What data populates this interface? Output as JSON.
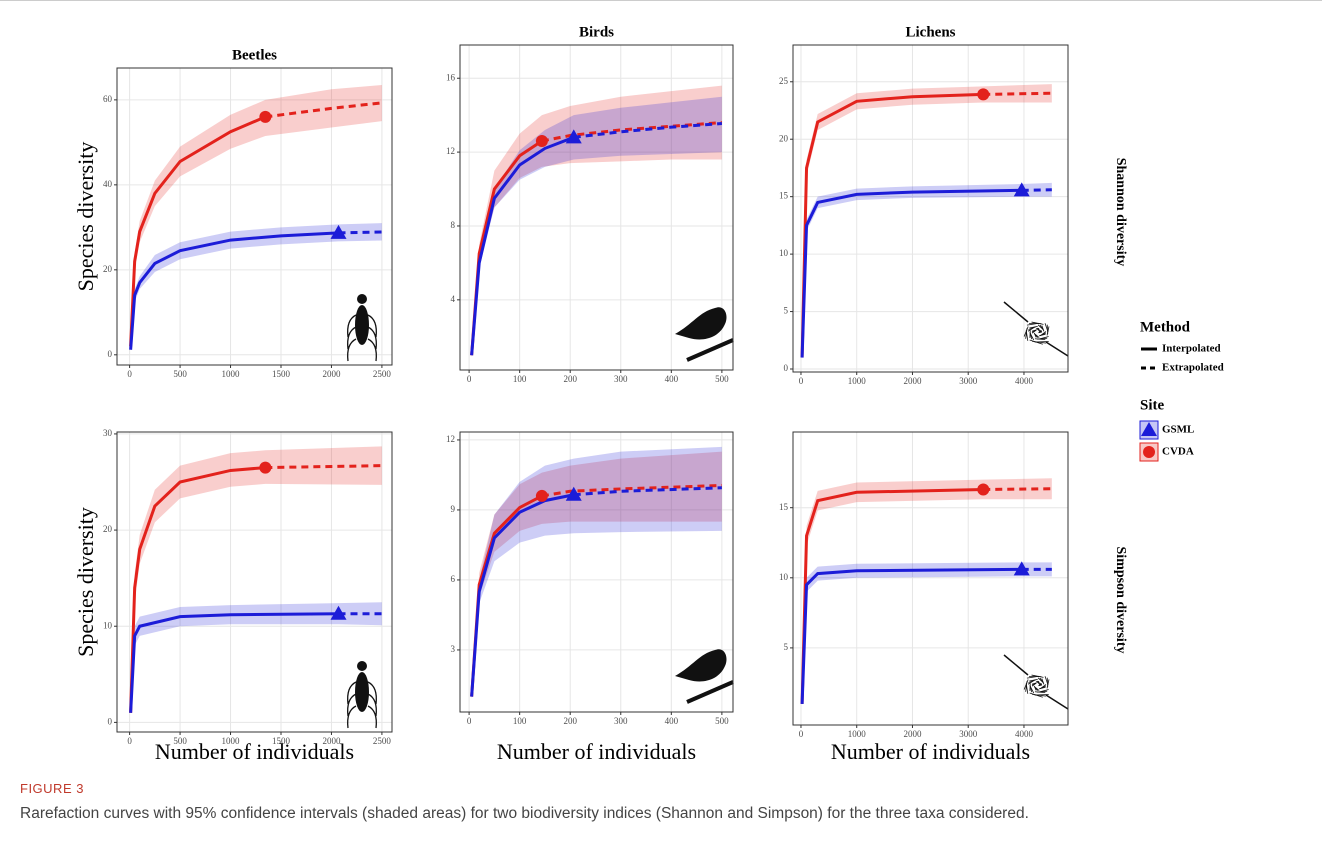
{
  "figure": {
    "label": "FIGURE 3",
    "caption": "Rarefaction curves with 95% confidence intervals (shaded areas) for two biodiversity indices (Shannon and Simpson) for the three taxa considered."
  },
  "legend": {
    "method_title": "Method",
    "methods": [
      "Interpolated",
      "Extrapolated"
    ],
    "site_title": "Site"
  },
  "chart_data": [
    {
      "type": "line",
      "title": "Beetles",
      "ylabel": "Species diversity",
      "grid": true,
      "xlim": [
        -125,
        2600
      ],
      "xticks": [
        0,
        500,
        1000,
        1500,
        2000,
        2500
      ],
      "ylim": [
        -2.4,
        67.5
      ],
      "yticks": [
        0,
        20,
        40,
        60
      ],
      "series": [
        {
          "name": "GSML",
          "color": "#1c1cd8",
          "marker": "triangle",
          "x": [
            10,
            50,
            100,
            250,
            500,
            1000,
            1500,
            2070,
            2500
          ],
          "values": [
            1.2,
            14,
            17,
            21.5,
            24.5,
            27,
            28,
            28.7,
            28.9
          ],
          "lower": [
            1,
            12.5,
            15.5,
            19.5,
            22.5,
            25,
            26,
            26.7,
            26.9
          ],
          "upper": [
            1.4,
            15.5,
            18.5,
            23.5,
            26.5,
            29,
            30,
            30.7,
            31
          ],
          "observed_x": 2070,
          "observed_y": 28.7
        },
        {
          "name": "CVDA",
          "color": "#e3221c",
          "marker": "circle",
          "x": [
            10,
            50,
            100,
            250,
            500,
            1000,
            1345,
            2000,
            2500
          ],
          "values": [
            2,
            22,
            29,
            38,
            45.5,
            52.5,
            56,
            58,
            59.3
          ],
          "lower": [
            1.8,
            20,
            26.5,
            35,
            42,
            48.5,
            51.5,
            53.5,
            55
          ],
          "upper": [
            2.2,
            24,
            31.5,
            41,
            49,
            56.5,
            60,
            62.5,
            63.5
          ],
          "observed_x": 1345,
          "observed_y": 56
        }
      ]
    },
    {
      "type": "line",
      "title": "Birds",
      "grid": true,
      "xlim": [
        -18,
        522
      ],
      "xticks": [
        0,
        100,
        200,
        300,
        400,
        500
      ],
      "ylim": [
        0.2,
        17.8
      ],
      "yticks": [
        4,
        8,
        12,
        16
      ],
      "series": [
        {
          "color": "#1c1cd8",
          "marker": "triangle",
          "x": [
            5,
            20,
            50,
            100,
            150,
            207,
            300,
            400,
            500
          ],
          "values": [
            1,
            6,
            9.5,
            11.3,
            12.2,
            12.8,
            13.1,
            13.35,
            13.55
          ],
          "lower": [
            0.9,
            5.7,
            9,
            10.5,
            11.2,
            11.6,
            11.8,
            11.9,
            12
          ],
          "upper": [
            1.1,
            6.3,
            10,
            12.1,
            13.2,
            14,
            14.4,
            14.7,
            15
          ],
          "observed_x": 207,
          "observed_y": 12.8
        },
        {
          "color": "#e3221c",
          "marker": "circle",
          "x": [
            5,
            20,
            50,
            100,
            144,
            200,
            300,
            400,
            500
          ],
          "values": [
            1,
            6.5,
            10,
            11.8,
            12.6,
            12.9,
            13.2,
            13.4,
            13.6
          ],
          "lower": [
            0.9,
            6,
            9,
            10.6,
            11.2,
            11.4,
            11.5,
            11.6,
            11.6
          ],
          "upper": [
            1.1,
            7,
            11,
            13,
            14,
            14.5,
            15,
            15.3,
            15.6
          ],
          "observed_x": 144,
          "observed_y": 12.6
        }
      ]
    },
    {
      "type": "line",
      "title": "Lichens",
      "row_label": "Shannon diversity",
      "grid": true,
      "xlim": [
        -143,
        4790
      ],
      "xticks": [
        0,
        1000,
        2000,
        3000,
        4000
      ],
      "ylim": [
        -0.26,
        28.2
      ],
      "yticks": [
        0,
        5,
        10,
        15,
        20,
        25
      ],
      "series": [
        {
          "color": "#1c1cd8",
          "marker": "triangle",
          "x": [
            20,
            100,
            300,
            1000,
            2000,
            3960,
            4500
          ],
          "values": [
            1,
            12.5,
            14.5,
            15.2,
            15.4,
            15.55,
            15.6
          ],
          "lower": [
            0.9,
            12,
            14,
            14.7,
            14.9,
            15,
            15
          ],
          "upper": [
            1.1,
            13,
            15,
            15.7,
            15.9,
            16.1,
            16.2
          ],
          "observed_x": 3960,
          "observed_y": 15.55
        },
        {
          "color": "#e3221c",
          "marker": "circle",
          "x": [
            20,
            100,
            300,
            1000,
            2000,
            3270,
            4500
          ],
          "values": [
            1,
            17.5,
            21.5,
            23.3,
            23.7,
            23.9,
            24
          ],
          "lower": [
            0.9,
            16.8,
            20.8,
            22.6,
            23,
            23.2,
            23.2
          ],
          "upper": [
            1.1,
            18.2,
            22.2,
            24,
            24.4,
            24.6,
            24.8
          ],
          "observed_x": 3270,
          "observed_y": 23.9
        }
      ]
    },
    {
      "type": "line",
      "ylabel": "Species diversity",
      "xlabel": "Number of individuals",
      "grid": true,
      "xlim": [
        -125,
        2600
      ],
      "xticks": [
        0,
        500,
        1000,
        1500,
        2000,
        2500
      ],
      "ylim": [
        -1,
        30.2
      ],
      "yticks": [
        0,
        10,
        20,
        30
      ],
      "series": [
        {
          "color": "#1c1cd8",
          "marker": "triangle",
          "x": [
            10,
            50,
            100,
            500,
            1000,
            2070,
            2500
          ],
          "values": [
            1,
            9,
            10,
            11,
            11.2,
            11.3,
            11.3
          ],
          "lower": [
            0.9,
            8,
            9,
            10,
            10.2,
            10.2,
            10.1
          ],
          "upper": [
            1.1,
            10,
            11,
            12,
            12.2,
            12.4,
            12.5
          ],
          "observed_x": 2070,
          "observed_y": 11.3
        },
        {
          "color": "#e3221c",
          "marker": "circle",
          "x": [
            10,
            50,
            100,
            250,
            500,
            1000,
            1345,
            2500
          ],
          "values": [
            1,
            14,
            18,
            22.5,
            25,
            26.2,
            26.5,
            26.7
          ],
          "lower": [
            0.9,
            12.5,
            16.5,
            20.8,
            23.3,
            24.5,
            24.8,
            24.7
          ],
          "upper": [
            1.1,
            15.5,
            19.5,
            24.2,
            26.7,
            28,
            28.3,
            28.7
          ],
          "observed_x": 1345,
          "observed_y": 26.5
        }
      ]
    },
    {
      "type": "line",
      "xlabel": "Number of individuals",
      "grid": true,
      "xlim": [
        -18,
        522
      ],
      "xticks": [
        0,
        100,
        200,
        300,
        400,
        500
      ],
      "ylim": [
        0.34,
        12.34
      ],
      "yticks": [
        3,
        6,
        9,
        12
      ],
      "series": [
        {
          "color": "#1c1cd8",
          "marker": "triangle",
          "x": [
            5,
            20,
            50,
            100,
            150,
            207,
            300,
            500
          ],
          "values": [
            1,
            5.5,
            7.8,
            8.9,
            9.4,
            9.65,
            9.8,
            9.95
          ],
          "lower": [
            0.9,
            5,
            6.8,
            7.6,
            7.9,
            8,
            8.05,
            8.1
          ],
          "upper": [
            1.1,
            6,
            8.8,
            10.2,
            10.9,
            11.2,
            11.5,
            11.7
          ],
          "observed_x": 207,
          "observed_y": 9.65
        },
        {
          "color": "#e3221c",
          "marker": "circle",
          "x": [
            5,
            20,
            50,
            100,
            144,
            200,
            300,
            500
          ],
          "values": [
            1,
            5.8,
            8,
            9.1,
            9.6,
            9.8,
            9.9,
            10.05
          ],
          "lower": [
            0.9,
            5.3,
            7.2,
            8.1,
            8.4,
            8.5,
            8.5,
            8.5
          ],
          "upper": [
            1.1,
            6.3,
            8.8,
            10.1,
            10.6,
            10.9,
            11.2,
            11.5
          ],
          "observed_x": 144,
          "observed_y": 9.6
        }
      ]
    },
    {
      "type": "line",
      "xlabel": "Number of individuals",
      "row_label": "Simpson diversity",
      "grid": true,
      "xlim": [
        -143,
        4790
      ],
      "xticks": [
        0,
        1000,
        2000,
        3000,
        4000
      ],
      "ylim": [
        -0.5,
        20.4
      ],
      "yticks": [
        5,
        10,
        15
      ],
      "series": [
        {
          "color": "#1c1cd8",
          "marker": "triangle",
          "x": [
            20,
            100,
            300,
            1000,
            3960,
            4500
          ],
          "values": [
            1,
            9.5,
            10.3,
            10.5,
            10.6,
            10.6
          ],
          "lower": [
            0.9,
            9,
            9.8,
            10,
            10.1,
            10.1
          ],
          "upper": [
            1.1,
            10,
            10.8,
            11,
            11.1,
            11.1
          ],
          "observed_x": 3960,
          "observed_y": 10.6
        },
        {
          "color": "#e3221c",
          "marker": "circle",
          "x": [
            20,
            100,
            300,
            1000,
            3270,
            4500
          ],
          "values": [
            1,
            13,
            15.5,
            16.1,
            16.3,
            16.35
          ],
          "lower": [
            0.9,
            12.3,
            14.8,
            15.4,
            15.6,
            15.6
          ],
          "upper": [
            1.1,
            13.7,
            16.2,
            16.8,
            17,
            17.1
          ],
          "observed_x": 3270,
          "observed_y": 16.3
        }
      ]
    }
  ]
}
